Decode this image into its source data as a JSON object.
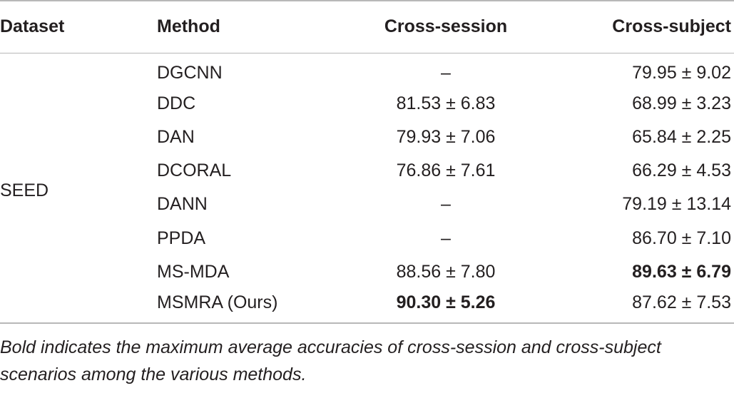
{
  "table": {
    "headers": {
      "dataset": "Dataset",
      "method": "Method",
      "cross_session": "Cross-session",
      "cross_subject": "Cross-subject"
    },
    "dataset_label": "SEED",
    "rows": [
      {
        "method": "DGCNN",
        "cross_session": "–",
        "cross_subject": "79.95 ± 9.02",
        "session_bold": false,
        "subject_bold": false
      },
      {
        "method": "DDC",
        "cross_session": "81.53 ± 6.83",
        "cross_subject": "68.99 ± 3.23",
        "session_bold": false,
        "subject_bold": false
      },
      {
        "method": "DAN",
        "cross_session": "79.93 ± 7.06",
        "cross_subject": "65.84 ± 2.25",
        "session_bold": false,
        "subject_bold": false
      },
      {
        "method": "DCORAL",
        "cross_session": "76.86 ± 7.61",
        "cross_subject": "66.29 ± 4.53",
        "session_bold": false,
        "subject_bold": false
      },
      {
        "method": "DANN",
        "cross_session": "–",
        "cross_subject": "79.19 ± 13.14",
        "session_bold": false,
        "subject_bold": false
      },
      {
        "method": "PPDA",
        "cross_session": "–",
        "cross_subject": "86.70 ± 7.10",
        "session_bold": false,
        "subject_bold": false
      },
      {
        "method": "MS-MDA",
        "cross_session": "88.56 ± 7.80",
        "cross_subject": "89.63 ± 6.79",
        "session_bold": false,
        "subject_bold": true
      },
      {
        "method": "MSMRA (Ours)",
        "cross_session": "90.30 ± 5.26",
        "cross_subject": "87.62 ± 7.53",
        "session_bold": true,
        "subject_bold": false
      }
    ]
  },
  "footnote": "Bold indicates the maximum average accuracies of cross-session and cross-subject scenarios among the various methods."
}
